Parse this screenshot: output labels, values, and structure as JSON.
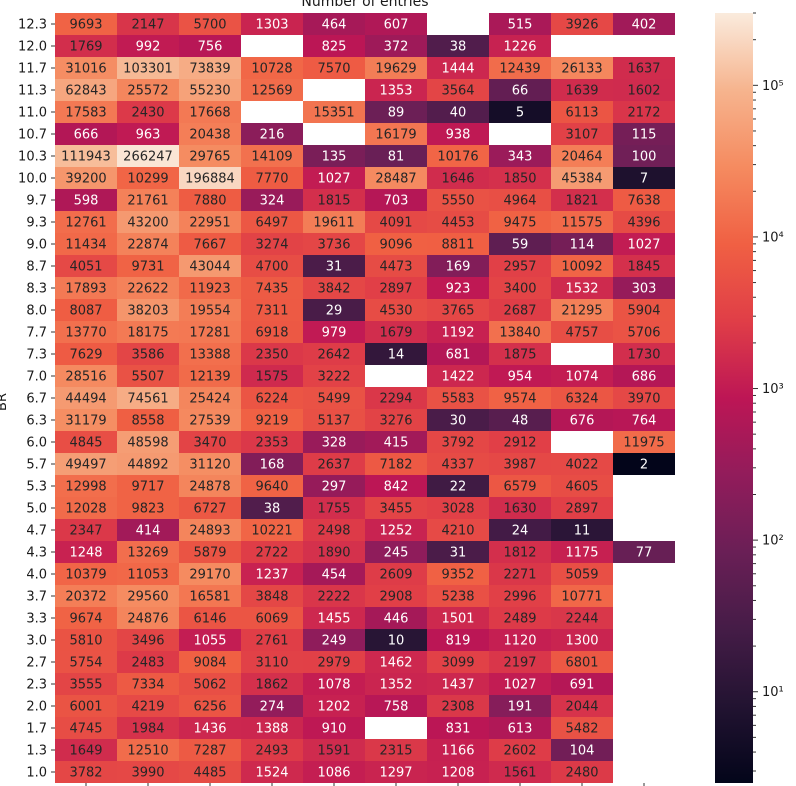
{
  "chart_data": {
    "type": "heatmap",
    "title": "Number of entries",
    "ylabel": "BR",
    "xlabel": "",
    "color_scale": "log",
    "colormap": "rocket",
    "colorbar_ticks": [
      {
        "value": 10,
        "label": "10¹"
      },
      {
        "value": 100,
        "label": "10²"
      },
      {
        "value": 1000,
        "label": "10³"
      },
      {
        "value": 10000,
        "label": "10⁴"
      },
      {
        "value": 100000,
        "label": "10⁵"
      }
    ],
    "colorbar_range": [
      2.5,
      300000
    ],
    "column_count": 10,
    "row_labels": [
      "12.3",
      "12.0",
      "11.7",
      "11.3",
      "11.0",
      "10.7",
      "10.3",
      "10.0",
      "9.7",
      "9.3",
      "9.0",
      "8.7",
      "8.3",
      "8.0",
      "7.7",
      "7.3",
      "7.0",
      "6.7",
      "6.3",
      "6.0",
      "5.7",
      "5.3",
      "5.0",
      "4.7",
      "4.3",
      "4.0",
      "3.7",
      "3.3",
      "3.0",
      "2.7",
      "2.3",
      "2.0",
      "1.7",
      "1.3",
      "1.0"
    ],
    "values": [
      [
        9693,
        2147,
        5700,
        1303,
        464,
        607,
        null,
        515,
        3926,
        402
      ],
      [
        1769,
        992,
        756,
        null,
        825,
        372,
        38,
        1226,
        null,
        null
      ],
      [
        31016,
        103301,
        73839,
        10728,
        7570,
        19629,
        1444,
        12439,
        26133,
        1637
      ],
      [
        62843,
        25572,
        55230,
        12569,
        null,
        1353,
        3564,
        66,
        1639,
        1602
      ],
      [
        17583,
        2430,
        17668,
        null,
        15351,
        89,
        40,
        5,
        6113,
        2172
      ],
      [
        666,
        963,
        20438,
        216,
        null,
        16179,
        938,
        null,
        3107,
        115
      ],
      [
        111943,
        266247,
        29765,
        14109,
        135,
        81,
        10176,
        343,
        20464,
        100
      ],
      [
        39200,
        10299,
        196884,
        7770,
        1027,
        28487,
        1646,
        1850,
        45384,
        7
      ],
      [
        598,
        21761,
        7880,
        324,
        1815,
        703,
        5550,
        4964,
        1821,
        7638
      ],
      [
        12761,
        43200,
        22951,
        6497,
        19611,
        4091,
        4453,
        9475,
        11575,
        4396
      ],
      [
        11434,
        22874,
        7667,
        3274,
        3736,
        9096,
        8811,
        59,
        114,
        1027
      ],
      [
        4051,
        9731,
        43044,
        4700,
        31,
        4473,
        169,
        2957,
        10092,
        1845
      ],
      [
        17893,
        22622,
        11923,
        7435,
        3842,
        2897,
        923,
        3400,
        1532,
        303
      ],
      [
        8087,
        38203,
        19554,
        7311,
        29,
        4530,
        3765,
        2687,
        21295,
        5904
      ],
      [
        13770,
        18175,
        17281,
        6918,
        979,
        1679,
        1192,
        13840,
        4757,
        5706
      ],
      [
        7629,
        3586,
        13388,
        2350,
        2642,
        14,
        681,
        1875,
        null,
        1730
      ],
      [
        28516,
        5507,
        12139,
        1575,
        3222,
        null,
        1422,
        954,
        1074,
        686
      ],
      [
        44494,
        74561,
        25424,
        6224,
        5499,
        2294,
        5583,
        9574,
        6324,
        3970
      ],
      [
        31179,
        8558,
        27539,
        9219,
        5137,
        3276,
        30,
        48,
        676,
        764
      ],
      [
        4845,
        48598,
        3470,
        2353,
        328,
        415,
        3792,
        2912,
        null,
        11975
      ],
      [
        49497,
        44892,
        31120,
        168,
        2637,
        7182,
        4337,
        3987,
        4022,
        2
      ],
      [
        12998,
        9717,
        24878,
        9640,
        297,
        842,
        22,
        6579,
        4605,
        null
      ],
      [
        12028,
        9823,
        6727,
        38,
        1755,
        3455,
        3028,
        1630,
        2897,
        null
      ],
      [
        2347,
        414,
        24893,
        10221,
        2498,
        1252,
        4210,
        24,
        11,
        null
      ],
      [
        1248,
        13269,
        5879,
        2722,
        1890,
        245,
        31,
        1812,
        1175,
        77
      ],
      [
        10379,
        11053,
        29170,
        1237,
        454,
        2609,
        9352,
        2271,
        5059,
        null
      ],
      [
        20372,
        29560,
        16581,
        3848,
        2222,
        2908,
        5238,
        2996,
        10771,
        null
      ],
      [
        9674,
        24876,
        6146,
        6069,
        1455,
        446,
        1501,
        2489,
        2244,
        null
      ],
      [
        5810,
        3496,
        1055,
        2761,
        249,
        10,
        819,
        1120,
        1300,
        null
      ],
      [
        5754,
        2483,
        9084,
        3110,
        2979,
        1462,
        3099,
        2197,
        6801,
        null
      ],
      [
        3555,
        7334,
        5062,
        1862,
        1078,
        1352,
        1437,
        1027,
        691,
        null
      ],
      [
        6001,
        4219,
        6256,
        274,
        1202,
        758,
        2308,
        191,
        2044,
        null
      ],
      [
        4745,
        1984,
        1436,
        1388,
        910,
        null,
        831,
        613,
        5482,
        null
      ],
      [
        1649,
        12510,
        7287,
        2493,
        1591,
        2315,
        1166,
        2602,
        104,
        null
      ],
      [
        3782,
        3990,
        4485,
        1524,
        1086,
        1297,
        1208,
        1561,
        2480,
        null
      ]
    ]
  }
}
